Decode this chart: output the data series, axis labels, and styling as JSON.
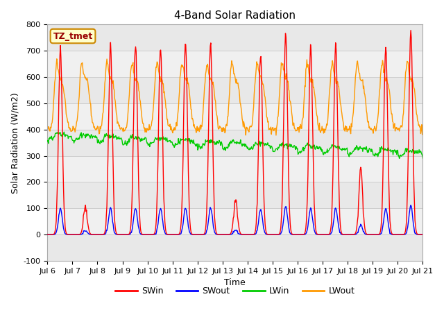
{
  "title": "4-Band Solar Radiation",
  "xlabel": "Time",
  "ylabel": "Solar Radiation (W/m2)",
  "ylim": [
    -100,
    800
  ],
  "yticks": [
    -100,
    0,
    100,
    200,
    300,
    400,
    500,
    600,
    700,
    800
  ],
  "n_days": 15,
  "colors": {
    "SWin": "#ff0000",
    "SWout": "#0000ff",
    "LWin": "#00cc00",
    "LWout": "#ff9900"
  },
  "label_box": "TZ_tmet",
  "label_box_color": "#ffffcc",
  "label_box_edge": "#cc8800",
  "label_box_text_color": "#990000",
  "band_colors": [
    "#e8e8e8",
    "#f0f0f0"
  ],
  "bg_color": "#ffffff",
  "tick_label_fontsize": 8,
  "axis_label_fontsize": 9,
  "title_fontsize": 11,
  "xtick_positions": [
    0,
    1,
    2,
    3,
    4,
    5,
    6,
    7,
    8,
    9,
    10,
    11,
    12,
    13,
    14,
    15
  ],
  "xtick_labels": [
    "Jul 6",
    "Jul 7",
    "Jul 8",
    "Jul 9",
    "Jul 10",
    "Jul 11",
    "Jul 12",
    "Jul 13",
    "Jul 14",
    "Jul 15",
    "Jul 16",
    "Jul 17",
    "Jul 18",
    "Jul 19",
    "Jul 20",
    "Jul 21"
  ]
}
